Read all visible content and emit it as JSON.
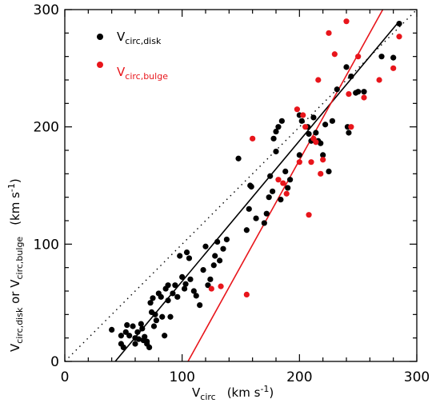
{
  "chart_data": {
    "type": "scatter",
    "title": "",
    "xlabel": {
      "main": "V",
      "sub": "circ",
      "units": "(km s",
      "exp": "-1",
      "close": ")"
    },
    "ylabel": {
      "a": "V",
      "a_sub": "circ,disk",
      "or": " or ",
      "b": "V",
      "b_sub": "circ,bulge",
      "units": "(km s",
      "exp": "-1",
      "close": ")"
    },
    "xlim": [
      0,
      300
    ],
    "ylim": [
      0,
      300
    ],
    "xticks": [
      0,
      100,
      200,
      300
    ],
    "yticks": [
      0,
      100,
      200,
      300
    ],
    "grid": false,
    "legend_position": "top-left",
    "series": [
      {
        "name": "V",
        "name_sub": "circ,disk",
        "color": "#000000",
        "marker": "circle",
        "points": [
          [
            40,
            27
          ],
          [
            48,
            22
          ],
          [
            48,
            15
          ],
          [
            50,
            12
          ],
          [
            52,
            25
          ],
          [
            53,
            31
          ],
          [
            55,
            22
          ],
          [
            58,
            30
          ],
          [
            60,
            20
          ],
          [
            60,
            15
          ],
          [
            62,
            25
          ],
          [
            63,
            19
          ],
          [
            65,
            32
          ],
          [
            66,
            28
          ],
          [
            67,
            18
          ],
          [
            68,
            21
          ],
          [
            70,
            17
          ],
          [
            70,
            15
          ],
          [
            72,
            12
          ],
          [
            73,
            50
          ],
          [
            74,
            42
          ],
          [
            75,
            54
          ],
          [
            76,
            30
          ],
          [
            77,
            40
          ],
          [
            78,
            35
          ],
          [
            80,
            58
          ],
          [
            82,
            55
          ],
          [
            83,
            38
          ],
          [
            85,
            22
          ],
          [
            86,
            62
          ],
          [
            88,
            65
          ],
          [
            88,
            52
          ],
          [
            90,
            38
          ],
          [
            92,
            58
          ],
          [
            94,
            65
          ],
          [
            96,
            55
          ],
          [
            98,
            90
          ],
          [
            100,
            72
          ],
          [
            102,
            62
          ],
          [
            103,
            66
          ],
          [
            104,
            93
          ],
          [
            106,
            88
          ],
          [
            107,
            70
          ],
          [
            110,
            60
          ],
          [
            112,
            56
          ],
          [
            115,
            48
          ],
          [
            118,
            78
          ],
          [
            120,
            98
          ],
          [
            122,
            65
          ],
          [
            124,
            70
          ],
          [
            127,
            82
          ],
          [
            128,
            90
          ],
          [
            130,
            102
          ],
          [
            132,
            86
          ],
          [
            135,
            96
          ],
          [
            138,
            104
          ],
          [
            148,
            173
          ],
          [
            155,
            112
          ],
          [
            157,
            130
          ],
          [
            158,
            150
          ],
          [
            159,
            149
          ],
          [
            163,
            122
          ],
          [
            170,
            118
          ],
          [
            172,
            126
          ],
          [
            174,
            140
          ],
          [
            175,
            158
          ],
          [
            177,
            145
          ],
          [
            178,
            190
          ],
          [
            180,
            179
          ],
          [
            180,
            196
          ],
          [
            182,
            200
          ],
          [
            184,
            138
          ],
          [
            185,
            205
          ],
          [
            188,
            162
          ],
          [
            190,
            148
          ],
          [
            192,
            155
          ],
          [
            200,
            210
          ],
          [
            200,
            176
          ],
          [
            202,
            205
          ],
          [
            207,
            200
          ],
          [
            208,
            194
          ],
          [
            210,
            188
          ],
          [
            212,
            208
          ],
          [
            214,
            195
          ],
          [
            216,
            188
          ],
          [
            218,
            186
          ],
          [
            220,
            176
          ],
          [
            222,
            202
          ],
          [
            225,
            162
          ],
          [
            228,
            205
          ],
          [
            232,
            232
          ],
          [
            240,
            251
          ],
          [
            241,
            200
          ],
          [
            242,
            195
          ],
          [
            244,
            243
          ],
          [
            248,
            229
          ],
          [
            250,
            230
          ],
          [
            255,
            230
          ],
          [
            270,
            260
          ],
          [
            280,
            259
          ],
          [
            285,
            288
          ]
        ]
      },
      {
        "name": "V",
        "name_sub": "circ,bulge",
        "color": "#e8151b",
        "marker": "circle",
        "points": [
          [
            125,
            62
          ],
          [
            133,
            64
          ],
          [
            155,
            57
          ],
          [
            160,
            190
          ],
          [
            182,
            155
          ],
          [
            186,
            152
          ],
          [
            189,
            143
          ],
          [
            198,
            215
          ],
          [
            200,
            170
          ],
          [
            203,
            210
          ],
          [
            205,
            200
          ],
          [
            208,
            125
          ],
          [
            210,
            170
          ],
          [
            212,
            190
          ],
          [
            214,
            187
          ],
          [
            216,
            240
          ],
          [
            218,
            160
          ],
          [
            220,
            172
          ],
          [
            225,
            280
          ],
          [
            230,
            262
          ],
          [
            240,
            290
          ],
          [
            242,
            228
          ],
          [
            244,
            200
          ],
          [
            250,
            260
          ],
          [
            255,
            225
          ],
          [
            268,
            240
          ],
          [
            280,
            250
          ],
          [
            285,
            277
          ]
        ]
      }
    ],
    "lines": [
      {
        "kind": "one-to-one",
        "style": "dotted",
        "color": "#000000",
        "points": [
          [
            0,
            0
          ],
          [
            300,
            300
          ]
        ]
      },
      {
        "kind": "fit-disk",
        "style": "solid",
        "color": "#000000",
        "points": [
          [
            43,
            0
          ],
          [
            285,
            290
          ]
        ]
      },
      {
        "kind": "fit-bulge",
        "style": "solid",
        "color": "#e8151b",
        "points": [
          [
            105,
            0
          ],
          [
            271,
            300
          ]
        ]
      }
    ]
  }
}
